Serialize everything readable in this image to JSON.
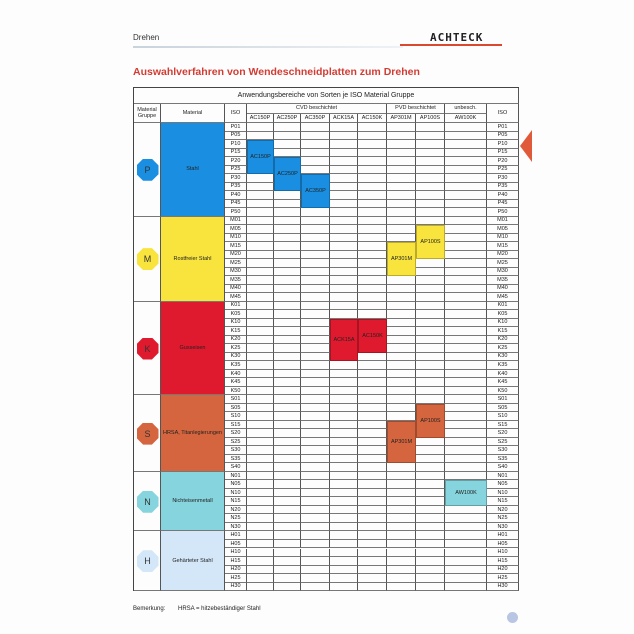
{
  "header": {
    "section": "Drehen",
    "logo": "ACHTECK"
  },
  "title": "Auswahlverfahren von Wendeschneidplatten zum Drehen",
  "table": {
    "caption": "Anwendungsbereiche von Sorten je ISO Material Gruppe",
    "col_group": "Material Gruppe",
    "col_material": "Material",
    "col_iso": "ISO",
    "coating_groups": [
      {
        "label": "CVD beschichtet",
        "span": 5
      },
      {
        "label": "PVD  beschichtet",
        "span": 2
      },
      {
        "label": "unbesch.",
        "span": 1
      }
    ],
    "grades": [
      "AC150P",
      "AC250P",
      "AC350P",
      "ACK15A",
      "AC150K",
      "AP301M",
      "AP100S",
      "AW100K"
    ],
    "groups": [
      {
        "letter": "P",
        "material": "Stahl",
        "color": "#1a8fe2",
        "iso": [
          "P01",
          "P05",
          "P10",
          "P15",
          "P20",
          "P25",
          "P30",
          "P35",
          "P40",
          "P45",
          "P50"
        ]
      },
      {
        "letter": "M",
        "material": "Rostfreier Stahl",
        "color": "#f8e43c",
        "iso": [
          "M01",
          "M05",
          "M10",
          "M15",
          "M20",
          "M25",
          "M30",
          "M35",
          "M40",
          "M45"
        ]
      },
      {
        "letter": "K",
        "material": "Gusseisen",
        "color": "#e01a2e",
        "iso": [
          "K01",
          "K05",
          "K10",
          "K15",
          "K20",
          "K25",
          "K30",
          "K35",
          "K40",
          "K45",
          "K50"
        ]
      },
      {
        "letter": "S",
        "material": "HRSA, Titanlegierungen",
        "color": "#d5653e",
        "iso": [
          "S01",
          "S05",
          "S10",
          "S15",
          "S20",
          "S25",
          "S30",
          "S35",
          "S40"
        ]
      },
      {
        "letter": "N",
        "material": "Nichteisenmetall",
        "color": "#86d4dd",
        "iso": [
          "N01",
          "N05",
          "N10",
          "N15",
          "N20",
          "N25",
          "N30"
        ]
      },
      {
        "letter": "H",
        "material": "Gehärteter Stahl",
        "color": "#d3e7f8",
        "iso": [
          "H01",
          "H05",
          "H10",
          "H15",
          "H20",
          "H25",
          "H30"
        ]
      }
    ],
    "blocks": [
      {
        "grade": "AC150P",
        "from": "P10",
        "to": "P25",
        "color": "#1a8fe2"
      },
      {
        "grade": "AC250P",
        "from": "P20",
        "to": "P35",
        "color": "#1a8fe2"
      },
      {
        "grade": "AC350P",
        "from": "P30",
        "to": "P45",
        "color": "#1a8fe2"
      },
      {
        "grade": "AP100S",
        "from": "M05",
        "to": "M20",
        "color": "#f8e43c"
      },
      {
        "grade": "AP301M",
        "from": "M15",
        "to": "M30",
        "color": "#f8e43c"
      },
      {
        "grade": "ACK15A",
        "from": "K10",
        "to": "K30",
        "color": "#e01a2e"
      },
      {
        "grade": "AC150K",
        "from": "K10",
        "to": "K25",
        "color": "#e01a2e"
      },
      {
        "grade": "AP100S",
        "from": "S05",
        "to": "S20",
        "color": "#d5653e"
      },
      {
        "grade": "AP301M",
        "from": "S15",
        "to": "S35",
        "color": "#d5653e"
      },
      {
        "grade": "AW100K",
        "from": "N05",
        "to": "N15",
        "color": "#86d4dd"
      }
    ]
  },
  "note": {
    "label": "Bemerkung:",
    "text": "HRSA = hitzebeständiger Stahl"
  }
}
